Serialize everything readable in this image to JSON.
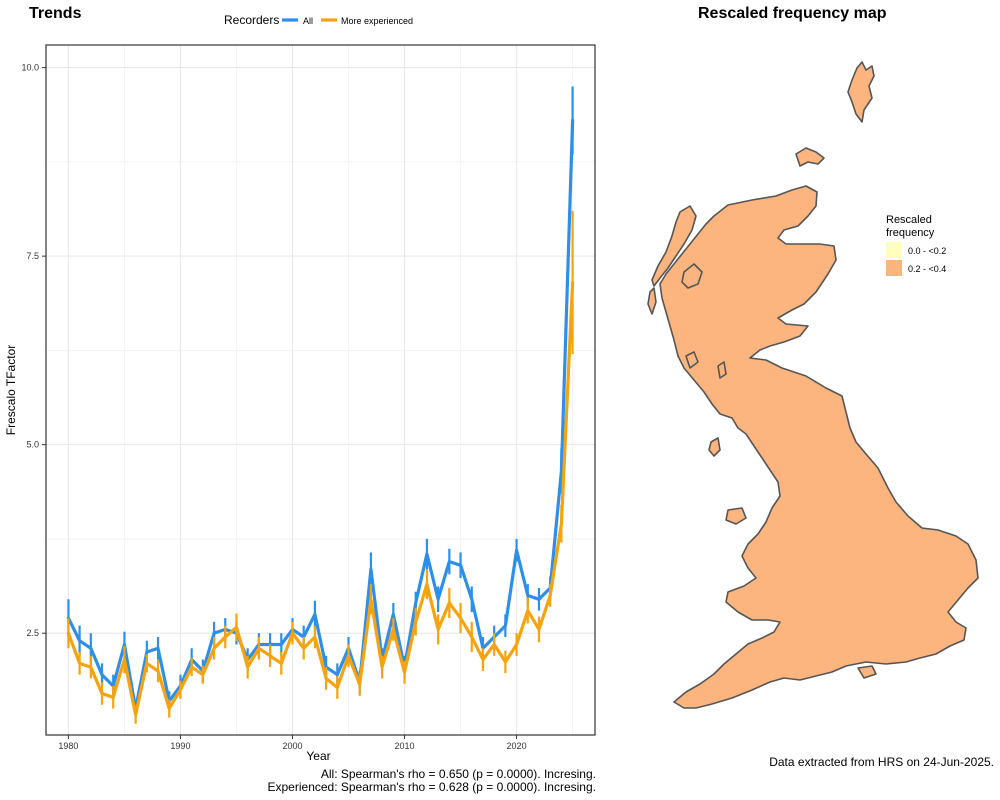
{
  "left_panel": {
    "title": "Trends"
  },
  "map_panel": {
    "title": "Rescaled frequency map",
    "legend_title_line1": "Rescaled",
    "legend_title_line2": "frequency",
    "legend_items": [
      {
        "label": "0.0 - <0.2",
        "color": "#FFFFC0"
      },
      {
        "label": "0.2 - <0.4",
        "color": "#FDB57F"
      }
    ],
    "region_color": "#FDB57F",
    "outline_color": "#555555"
  },
  "footnotes": {
    "spearman_all": "All: Spearman's rho = 0.650 (p = 0.0000). Incresing.",
    "spearman_experienced": "Experienced: Spearman's rho = 0.628 (p = 0.0000). Incresing.",
    "data_source": "Data extracted from HRS on 24-Jun-2025."
  },
  "chart_data": {
    "type": "line",
    "title": "Trends",
    "xlabel": "Year",
    "ylabel": "Frescalo TFactor",
    "xlim": [
      1978.0,
      2027.0
    ],
    "ylim": [
      1.15,
      10.3
    ],
    "xticks": [
      1980,
      1990,
      2000,
      2010,
      2020
    ],
    "yticks": [
      2.5,
      5.0,
      7.5,
      10.0
    ],
    "ytick_labels": [
      "2.5",
      "5.0",
      "7.5",
      "10.0"
    ],
    "grid": true,
    "legend": {
      "title": "Recorders",
      "position": "top"
    },
    "x": [
      1980,
      1981,
      1982,
      1983,
      1984,
      1985,
      1986,
      1987,
      1988,
      1989,
      1990,
      1991,
      1992,
      1993,
      1994,
      1995,
      1996,
      1997,
      1998,
      1999,
      2000,
      2001,
      2002,
      2003,
      2004,
      2005,
      2006,
      2007,
      2008,
      2009,
      2010,
      2011,
      2012,
      2013,
      2014,
      2015,
      2016,
      2017,
      2018,
      2019,
      2020,
      2021,
      2022,
      2023,
      2024,
      2025
    ],
    "series": [
      {
        "name": "All",
        "color": "#2E8FE8",
        "values": [
          2.7,
          2.4,
          2.3,
          1.95,
          1.8,
          2.35,
          1.5,
          2.25,
          2.3,
          1.6,
          1.8,
          2.15,
          2.0,
          2.5,
          2.55,
          2.5,
          2.15,
          2.35,
          2.35,
          2.35,
          2.55,
          2.45,
          2.75,
          2.05,
          1.95,
          2.3,
          1.85,
          3.35,
          2.15,
          2.75,
          2.05,
          2.9,
          3.55,
          2.95,
          3.45,
          3.4,
          2.95,
          2.3,
          2.45,
          2.6,
          3.6,
          3.0,
          2.95,
          3.1,
          4.65,
          9.3
        ],
        "err": [
          0.25,
          0.2,
          0.2,
          0.15,
          0.15,
          0.17,
          0.12,
          0.15,
          0.15,
          0.13,
          0.15,
          0.15,
          0.15,
          0.15,
          0.15,
          0.15,
          0.15,
          0.15,
          0.15,
          0.15,
          0.15,
          0.15,
          0.18,
          0.15,
          0.15,
          0.15,
          0.15,
          0.22,
          0.15,
          0.15,
          0.15,
          0.15,
          0.2,
          0.17,
          0.17,
          0.17,
          0.17,
          0.15,
          0.15,
          0.15,
          0.15,
          0.15,
          0.15,
          0.15,
          0.3,
          0.45
        ]
      },
      {
        "name": "More experienced",
        "color": "#F5A30F",
        "values": [
          2.5,
          2.1,
          2.05,
          1.7,
          1.65,
          2.15,
          1.42,
          2.1,
          2.0,
          1.5,
          1.75,
          2.05,
          1.95,
          2.3,
          2.45,
          2.58,
          2.05,
          2.3,
          2.2,
          2.1,
          2.5,
          2.3,
          2.45,
          1.9,
          1.78,
          2.2,
          1.82,
          2.95,
          2.05,
          2.55,
          1.98,
          2.65,
          3.15,
          2.55,
          2.9,
          2.7,
          2.45,
          2.15,
          2.35,
          2.12,
          2.35,
          2.8,
          2.55,
          3.0,
          3.95,
          7.15
        ],
        "err": [
          0.2,
          0.15,
          0.15,
          0.15,
          0.15,
          0.18,
          0.12,
          0.12,
          0.15,
          0.12,
          0.12,
          0.12,
          0.12,
          0.15,
          0.15,
          0.18,
          0.15,
          0.15,
          0.15,
          0.15,
          0.15,
          0.15,
          0.15,
          0.15,
          0.15,
          0.15,
          0.15,
          0.2,
          0.15,
          0.15,
          0.15,
          0.18,
          0.2,
          0.2,
          0.2,
          0.2,
          0.2,
          0.15,
          0.15,
          0.15,
          0.15,
          0.17,
          0.17,
          0.15,
          0.25,
          0.95
        ]
      }
    ]
  }
}
